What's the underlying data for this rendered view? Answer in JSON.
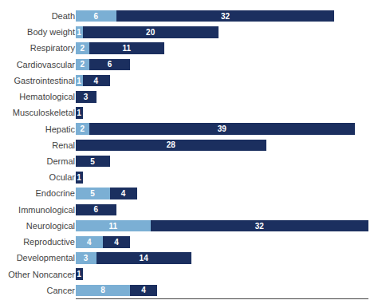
{
  "chart_data": {
    "type": "bar",
    "orientation": "horizontal",
    "stacked": true,
    "categories": [
      "Death",
      "Body weight",
      "Respiratory",
      "Cardiovascular",
      "Gastrointestinal",
      "Hematological",
      "Musculoskeletal",
      "Hepatic",
      "Renal",
      "Dermal",
      "Ocular",
      "Endocrine",
      "Immunological",
      "Neurological",
      "Reproductive",
      "Developmental",
      "Other Noncancer",
      "Cancer"
    ],
    "series": [
      {
        "color": "#7bafd4",
        "values": [
          6,
          1,
          2,
          2,
          1,
          0,
          0,
          2,
          0,
          0,
          0,
          5,
          0,
          11,
          4,
          3,
          0,
          8
        ]
      },
      {
        "color": "#1b2f5f",
        "values": [
          32,
          20,
          11,
          6,
          4,
          3,
          1,
          39,
          28,
          5,
          1,
          4,
          6,
          32,
          4,
          14,
          1,
          4
        ]
      }
    ],
    "xlim": [
      0,
      43
    ],
    "data_labels": true,
    "tick_labels": "y",
    "grid": false
  }
}
